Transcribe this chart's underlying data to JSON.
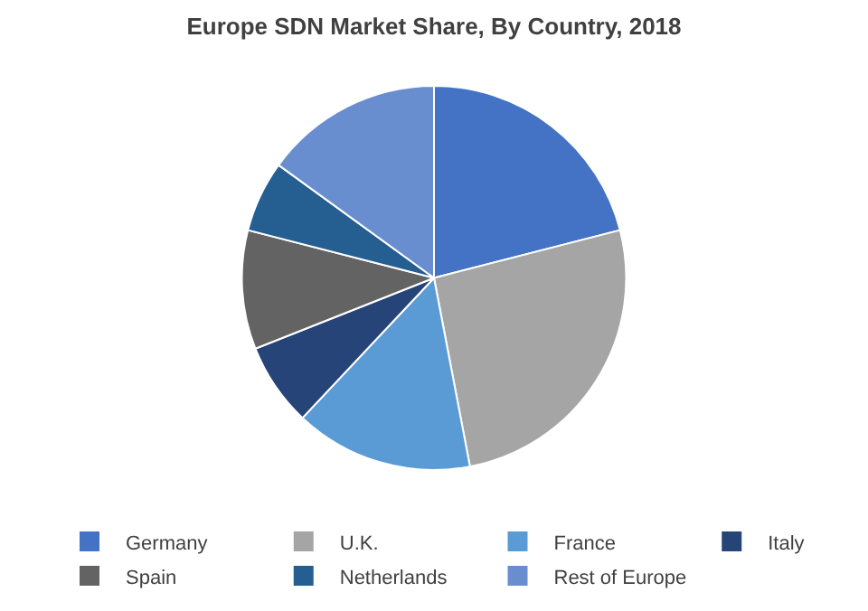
{
  "chart_data": {
    "type": "pie",
    "title": "Europe SDN Market Share, By Country, 2018",
    "categories": [
      "Germany",
      "U.K.",
      "France",
      "Italy",
      "Spain",
      "Netherlands",
      "Rest of Europe"
    ],
    "values": [
      21,
      26,
      15,
      7,
      10,
      6,
      15
    ],
    "colors": [
      "#4472c4",
      "#a5a5a5",
      "#5b9bd5",
      "#264478",
      "#636363",
      "#255e91",
      "#698ed0"
    ],
    "legend": "bottom"
  }
}
